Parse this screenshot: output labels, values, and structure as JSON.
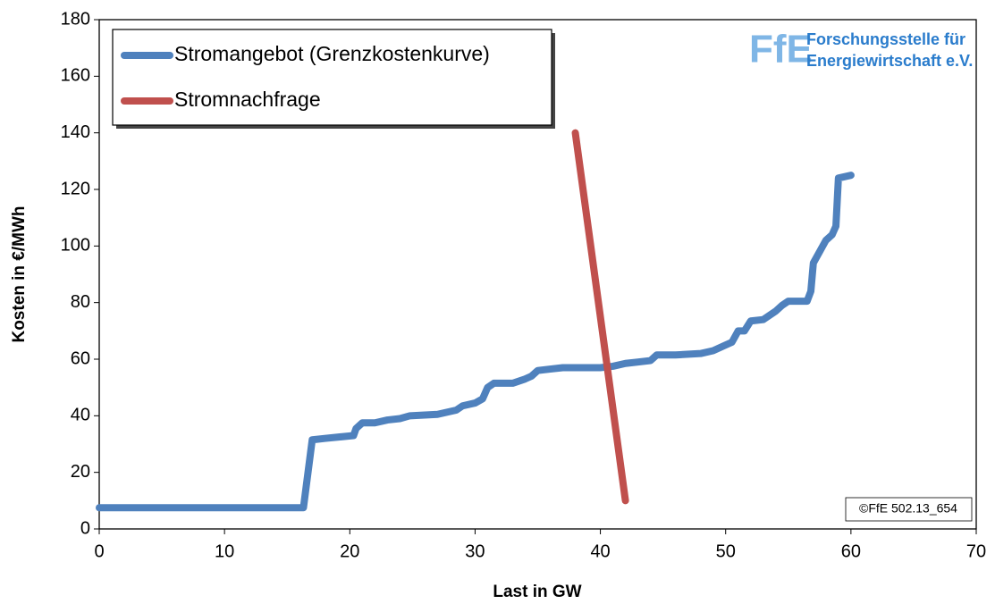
{
  "chart_data": {
    "type": "line",
    "x_label": "Last in GW",
    "y_label": "Kosten in €/MWh",
    "xlim": [
      0,
      70
    ],
    "xticks": [
      0,
      10,
      20,
      30,
      40,
      50,
      60,
      70
    ],
    "ylim": [
      0,
      180
    ],
    "yticks": [
      0,
      20,
      40,
      60,
      80,
      100,
      120,
      140,
      160,
      180
    ],
    "legend": "top-left",
    "logo": {
      "mark": "FfE",
      "lines": [
        "Forschungsstelle für",
        "Energiewirtschaft e.V."
      ]
    },
    "annotation": "©FfE 502.13_654",
    "series": [
      {
        "name": "Stromangebot (Grenzkostenkurve)",
        "color": "#4f81bd",
        "x": [
          0,
          16.3,
          17,
          18,
          20.3,
          20.5,
          21,
          22,
          23,
          24,
          24.8,
          27,
          28.5,
          29,
          30,
          30.6,
          31,
          31.5,
          33,
          34,
          34.5,
          35,
          36,
          37,
          40,
          41,
          42,
          43,
          44,
          44.5,
          46,
          48,
          49,
          50,
          50.5,
          51,
          51.5,
          52,
          53,
          54,
          54.5,
          55,
          56.5,
          56.8,
          57,
          57.5,
          58,
          58.5,
          58.8,
          59,
          60
        ],
        "values": [
          7.5,
          7.5,
          31.5,
          32,
          33,
          35.5,
          37.5,
          37.5,
          38.5,
          39,
          40,
          40.5,
          42,
          43.5,
          44.5,
          46,
          50,
          51.5,
          51.5,
          53,
          54,
          56,
          56.5,
          57,
          57,
          57.5,
          58.5,
          59,
          59.5,
          61.5,
          61.5,
          62,
          63,
          65,
          66,
          70,
          70,
          73.5,
          74,
          77,
          79,
          80.5,
          80.5,
          84,
          94,
          98,
          102,
          104,
          107,
          124,
          125
        ]
      },
      {
        "name": "Stromnachfrage",
        "color": "#c0504d",
        "x": [
          38,
          42
        ],
        "values": [
          140,
          10
        ]
      }
    ]
  }
}
